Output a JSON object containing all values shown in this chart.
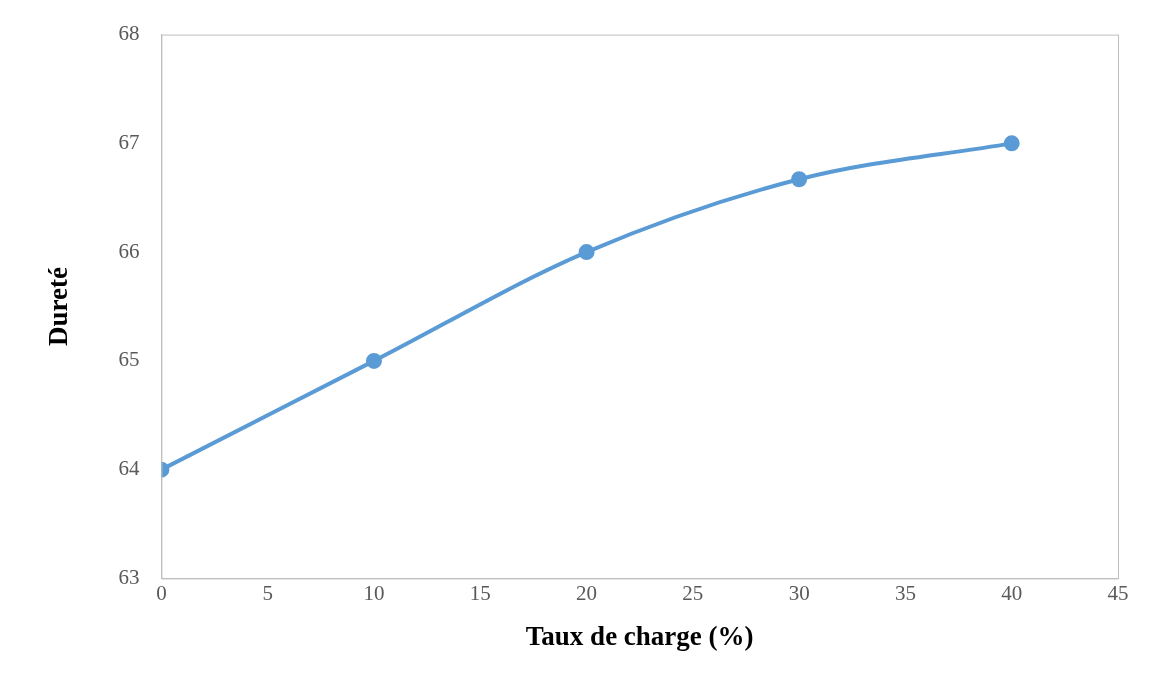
{
  "chart_data": {
    "type": "line",
    "xlabel": "Taux de charge (%)",
    "ylabel": "Dureté",
    "x": [
      0,
      10,
      20,
      30,
      40
    ],
    "series": [
      {
        "color": "#5b9bd5",
        "values": [
          64,
          65,
          66,
          66.67,
          67
        ]
      }
    ],
    "xlim": [
      0,
      45
    ],
    "xticks": [
      0,
      5,
      10,
      15,
      20,
      25,
      30,
      35,
      40,
      45
    ],
    "ylim": [
      63,
      68
    ],
    "yticks": [
      63,
      64,
      65,
      66,
      67,
      68
    ],
    "grid": false,
    "legend": false,
    "marker": "circle",
    "line_style": "solid"
  }
}
